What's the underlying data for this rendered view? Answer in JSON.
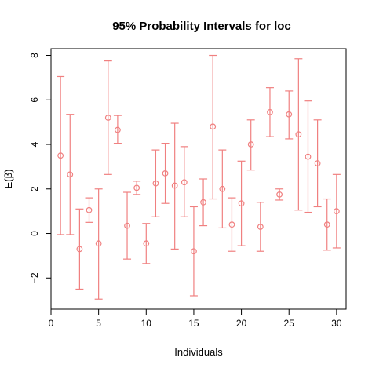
{
  "chart_data": {
    "type": "errorbar",
    "title": "95% Probability Intervals for  loc",
    "xlabel": "Individuals",
    "ylabel": "E(β)",
    "xlim": [
      0,
      31
    ],
    "ylim": [
      -3.4,
      8.3
    ],
    "x_ticks": [
      0,
      5,
      10,
      15,
      20,
      25,
      30
    ],
    "y_ticks": [
      -2,
      0,
      2,
      4,
      6,
      8
    ],
    "grid": false,
    "color": "#f08080",
    "points": [
      {
        "x": 1,
        "mean": 3.5,
        "lower": -0.05,
        "upper": 7.05
      },
      {
        "x": 2,
        "mean": 2.65,
        "lower": -0.05,
        "upper": 5.35
      },
      {
        "x": 3,
        "mean": -0.7,
        "lower": -2.5,
        "upper": 1.1
      },
      {
        "x": 4,
        "mean": 1.05,
        "lower": 0.5,
        "upper": 1.6
      },
      {
        "x": 5,
        "mean": -0.45,
        "lower": -2.95,
        "upper": 2.0
      },
      {
        "x": 6,
        "mean": 5.2,
        "lower": 2.65,
        "upper": 7.75
      },
      {
        "x": 7,
        "mean": 4.65,
        "lower": 4.05,
        "upper": 5.3
      },
      {
        "x": 8,
        "mean": 0.35,
        "lower": -1.15,
        "upper": 1.85
      },
      {
        "x": 9,
        "mean": 2.05,
        "lower": 1.75,
        "upper": 2.35
      },
      {
        "x": 10,
        "mean": -0.45,
        "lower": -1.35,
        "upper": 0.45
      },
      {
        "x": 11,
        "mean": 2.25,
        "lower": 0.75,
        "upper": 3.75
      },
      {
        "x": 12,
        "mean": 2.7,
        "lower": 1.35,
        "upper": 4.05
      },
      {
        "x": 13,
        "mean": 2.15,
        "lower": -0.7,
        "upper": 4.95
      },
      {
        "x": 14,
        "mean": 2.3,
        "lower": 0.75,
        "upper": 3.9
      },
      {
        "x": 15,
        "mean": -0.8,
        "lower": -2.8,
        "upper": 1.2
      },
      {
        "x": 16,
        "mean": 1.4,
        "lower": 0.35,
        "upper": 2.45
      },
      {
        "x": 17,
        "mean": 4.8,
        "lower": 1.55,
        "upper": 8.0
      },
      {
        "x": 18,
        "mean": 2.0,
        "lower": 0.25,
        "upper": 3.75
      },
      {
        "x": 19,
        "mean": 0.4,
        "lower": -0.8,
        "upper": 1.6
      },
      {
        "x": 20,
        "mean": 1.35,
        "lower": -0.55,
        "upper": 3.25
      },
      {
        "x": 21,
        "mean": 4.0,
        "lower": 2.85,
        "upper": 5.1
      },
      {
        "x": 22,
        "mean": 0.3,
        "lower": -0.8,
        "upper": 1.4
      },
      {
        "x": 23,
        "mean": 5.45,
        "lower": 4.35,
        "upper": 6.55
      },
      {
        "x": 24,
        "mean": 1.75,
        "lower": 1.5,
        "upper": 2.0
      },
      {
        "x": 25,
        "mean": 5.35,
        "lower": 4.25,
        "upper": 6.4
      },
      {
        "x": 26,
        "mean": 4.45,
        "lower": 1.05,
        "upper": 7.85
      },
      {
        "x": 27,
        "mean": 3.45,
        "lower": 0.95,
        "upper": 5.95
      },
      {
        "x": 28,
        "mean": 3.15,
        "lower": 1.2,
        "upper": 5.1
      },
      {
        "x": 29,
        "mean": 0.4,
        "lower": -0.75,
        "upper": 1.55
      },
      {
        "x": 30,
        "mean": 1.0,
        "lower": -0.65,
        "upper": 2.65
      }
    ]
  }
}
